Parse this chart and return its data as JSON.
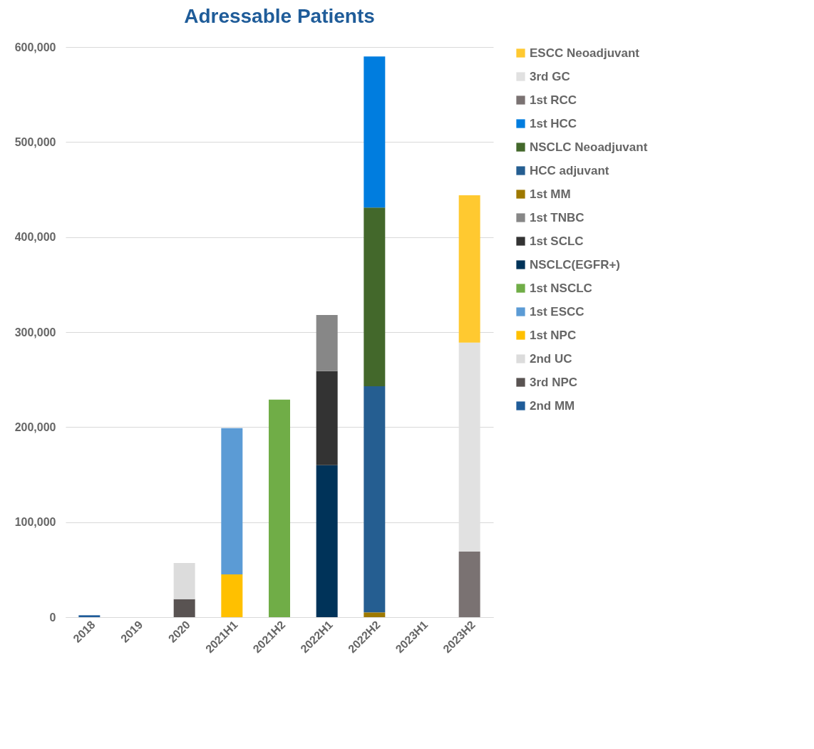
{
  "chart_data": {
    "type": "bar",
    "title": "Adressable Patients",
    "stacked": true,
    "grid": "y",
    "legend": "right",
    "categories": [
      "2018",
      "2019",
      "2020",
      "2021H1",
      "2021H2",
      "2022H1",
      "2022H2",
      "2023H1",
      "2023H2"
    ],
    "ylim": [
      0,
      600000
    ],
    "yticks": [
      0,
      {
        "value": 100000,
        "label": "100,000"
      },
      {
        "value": 200000,
        "label": "200,000"
      },
      {
        "value": 300000,
        "label": "300,000"
      },
      {
        "value": 400000,
        "label": "400,000"
      },
      {
        "value": 500000,
        "label": "500,000"
      },
      {
        "value": 600000,
        "label": "600,000"
      }
    ],
    "series": [
      {
        "name": "2nd MM",
        "color": "#1f5c99",
        "values": [
          2000,
          null,
          null,
          null,
          null,
          null,
          null,
          null,
          null
        ]
      },
      {
        "name": "3rd NPC",
        "color": "#595352",
        "values": [
          null,
          null,
          19000,
          null,
          null,
          null,
          null,
          null,
          null
        ]
      },
      {
        "name": "2nd UC",
        "color": "#dcdcdc",
        "values": [
          null,
          null,
          38000,
          null,
          null,
          null,
          null,
          null,
          null
        ]
      },
      {
        "name": "1st NPC",
        "color": "#ffc000",
        "values": [
          null,
          null,
          null,
          45000,
          null,
          null,
          null,
          null,
          null
        ]
      },
      {
        "name": "1st ESCC",
        "color": "#5b9bd5",
        "values": [
          null,
          null,
          null,
          154000,
          null,
          null,
          null,
          null,
          null
        ]
      },
      {
        "name": "1st NSCLC",
        "color": "#70ad47",
        "values": [
          null,
          null,
          null,
          null,
          229000,
          null,
          null,
          null,
          null
        ]
      },
      {
        "name": "NSCLC(EGFR+)",
        "color": "#003359",
        "values": [
          null,
          null,
          null,
          null,
          null,
          160000,
          null,
          null,
          null
        ]
      },
      {
        "name": "1st SCLC",
        "color": "#333333",
        "values": [
          null,
          null,
          null,
          null,
          null,
          99000,
          null,
          null,
          null
        ]
      },
      {
        "name": "1st TNBC",
        "color": "#878787",
        "values": [
          null,
          null,
          null,
          null,
          null,
          59000,
          null,
          null,
          null
        ]
      },
      {
        "name": "1st MM",
        "color": "#9e7900",
        "values": [
          null,
          null,
          null,
          null,
          null,
          null,
          5000,
          null,
          null
        ]
      },
      {
        "name": "HCC adjuvant",
        "color": "#255e91",
        "values": [
          null,
          null,
          null,
          null,
          null,
          null,
          238000,
          null,
          null
        ]
      },
      {
        "name": "NSCLC Neoadjuvant",
        "color": "#43682b",
        "values": [
          null,
          null,
          null,
          null,
          null,
          null,
          188000,
          null,
          null
        ]
      },
      {
        "name": "1st HCC",
        "color": "#007ddf",
        "values": [
          null,
          null,
          null,
          null,
          null,
          null,
          159000,
          null,
          null
        ]
      },
      {
        "name": "1st RCC",
        "color": "#7a7272",
        "values": [
          null,
          null,
          null,
          null,
          null,
          null,
          null,
          null,
          69000
        ]
      },
      {
        "name": "3rd GC",
        "color": "#e1e1e1",
        "values": [
          null,
          null,
          null,
          null,
          null,
          null,
          null,
          null,
          220000
        ]
      },
      {
        "name": "ESCC Neoadjuvant",
        "color": "#ffc930",
        "values": [
          null,
          null,
          null,
          null,
          null,
          null,
          null,
          null,
          155000
        ]
      }
    ]
  }
}
